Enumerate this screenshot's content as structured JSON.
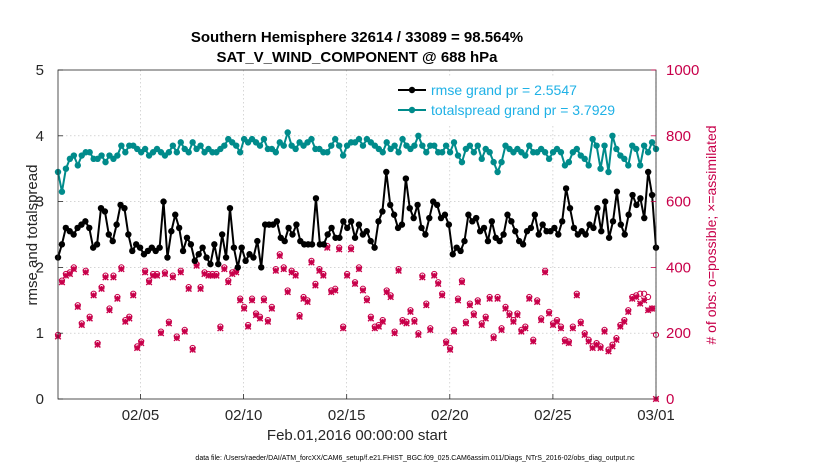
{
  "chart_data": {
    "type": "line",
    "title": "Southern Hemisphere 32614 / 33089 = 98.564%",
    "subtitle": "SAT_V_WIND_COMPONENT @ 688 hPa",
    "xlabel": "Feb.01,2016 00:00:00 start",
    "ylabel": "rmse and totalspread",
    "ylabel_right": "# of obs: o=possible; ×=assimilated",
    "footnote": "data file: /Users/raeder/DAI/ATM_forcXX/CAM6_setup/f.e21.FHIST_BGC.f09_025.CAM6assim.011/Diags_NTrS_2016-02/obs_diag_output.nc",
    "xlim": [
      1,
      30
    ],
    "ylim": [
      0,
      5
    ],
    "ylim_right": [
      0,
      1000
    ],
    "xticks": [
      {
        "x": 5,
        "label": "02/05"
      },
      {
        "x": 10,
        "label": "02/10"
      },
      {
        "x": 15,
        "label": "02/15"
      },
      {
        "x": 20,
        "label": "02/20"
      },
      {
        "x": 25,
        "label": "02/25"
      },
      {
        "x": 30,
        "label": "03/01"
      }
    ],
    "yticks": [
      0,
      1,
      2,
      3,
      4,
      5
    ],
    "yticks_right": [
      0,
      200,
      400,
      600,
      800,
      1000
    ],
    "grid": true,
    "legend_position": "top-right",
    "series": [
      {
        "name": "rmse grand pr = 2.5547",
        "color": "#000000",
        "axis": "left",
        "values": [
          2.15,
          2.35,
          2.6,
          2.55,
          2.5,
          2.6,
          2.65,
          2.7,
          2.6,
          2.3,
          2.35,
          2.9,
          2.85,
          2.5,
          2.4,
          2.65,
          2.95,
          2.9,
          2.5,
          2.25,
          2.35,
          2.3,
          2.2,
          2.25,
          2.3,
          2.25,
          2.3,
          3.0,
          2.15,
          2.55,
          2.8,
          2.6,
          2.25,
          2.45,
          2.35,
          2.1,
          2.2,
          2.3,
          2.15,
          2.05,
          2.35,
          2.05,
          2.5,
          2.15,
          2.9,
          2.3,
          2.0,
          2.3,
          2.1,
          2.2,
          2.15,
          2.4,
          2.0,
          2.65,
          2.65,
          2.65,
          2.7,
          2.45,
          2.4,
          2.6,
          2.5,
          2.65,
          2.4,
          2.35,
          2.35,
          2.35,
          3.05,
          2.35,
          2.35,
          2.5,
          2.6,
          2.45,
          2.45,
          2.7,
          2.6,
          2.7,
          2.45,
          2.65,
          2.5,
          2.55,
          2.4,
          2.3,
          2.7,
          2.85,
          3.45,
          2.95,
          2.8,
          2.6,
          2.65,
          3.35,
          2.9,
          2.75,
          2.95,
          2.6,
          2.5,
          2.75,
          3.0,
          2.95,
          2.75,
          2.8,
          2.65,
          2.2,
          2.3,
          2.25,
          2.4,
          2.8,
          2.7,
          2.75,
          2.55,
          2.6,
          2.4,
          2.7,
          2.45,
          2.4,
          2.5,
          2.8,
          2.7,
          2.55,
          2.4,
          2.35,
          2.55,
          2.6,
          2.8,
          2.5,
          2.65,
          2.55,
          2.55,
          2.6,
          2.5,
          2.7,
          3.2,
          2.9,
          2.6,
          2.5,
          2.55,
          2.5,
          2.65,
          2.6,
          2.9,
          2.55,
          3.0,
          2.45,
          2.7,
          3.15,
          2.65,
          2.5,
          2.8,
          3.1,
          2.95,
          3.05,
          2.75,
          3.45,
          3.1,
          2.3
        ]
      },
      {
        "name": "totalspread grand pr = 3.7929",
        "color": "#008b8b",
        "axis": "left",
        "values": [
          3.45,
          3.15,
          3.5,
          3.65,
          3.7,
          3.55,
          3.7,
          3.75,
          3.75,
          3.65,
          3.65,
          3.7,
          3.6,
          3.7,
          3.65,
          3.7,
          3.85,
          3.75,
          3.85,
          3.85,
          3.8,
          3.75,
          3.8,
          3.7,
          3.75,
          3.8,
          3.75,
          3.7,
          3.75,
          3.85,
          3.75,
          3.9,
          3.8,
          3.75,
          3.9,
          3.8,
          3.85,
          3.75,
          3.8,
          3.75,
          3.75,
          3.8,
          3.85,
          3.95,
          3.9,
          3.85,
          3.75,
          3.95,
          3.9,
          3.95,
          3.9,
          3.85,
          3.95,
          3.8,
          3.8,
          3.75,
          3.9,
          3.85,
          4.05,
          3.85,
          3.8,
          3.9,
          3.85,
          3.9,
          3.95,
          3.8,
          3.8,
          3.75,
          3.75,
          3.85,
          3.95,
          3.85,
          3.7,
          3.85,
          3.9,
          3.9,
          3.95,
          3.85,
          3.95,
          3.9,
          3.85,
          3.8,
          3.75,
          3.9,
          3.8,
          3.85,
          3.75,
          3.95,
          3.85,
          3.8,
          3.85,
          4.0,
          3.85,
          3.75,
          3.85,
          3.85,
          3.75,
          3.75,
          3.85,
          3.75,
          3.9,
          3.7,
          3.6,
          3.8,
          3.85,
          3.75,
          3.85,
          3.65,
          3.8,
          3.75,
          3.6,
          3.45,
          3.6,
          3.85,
          3.8,
          3.75,
          3.8,
          3.75,
          3.7,
          3.85,
          3.75,
          3.75,
          3.8,
          3.75,
          3.65,
          3.75,
          3.8,
          3.75,
          3.55,
          3.6,
          3.75,
          3.8,
          3.7,
          3.65,
          3.55,
          3.95,
          3.85,
          3.5,
          3.85,
          3.45,
          4.0,
          3.8,
          3.7,
          3.65,
          3.55,
          3.85,
          3.8,
          3.55,
          3.85,
          3.75,
          3.9,
          3.8
        ]
      },
      {
        "name": "# of obs possible",
        "color": "#c8004a",
        "axis": "right",
        "marker": "circle",
        "values": [
          195,
          360,
          380,
          385,
          400,
          285,
          230,
          390,
          250,
          320,
          170,
          340,
          375,
          275,
          375,
          310,
          400,
          240,
          250,
          320,
          160,
          175,
          390,
          360,
          380,
          380,
          205,
          385,
          235,
          375,
          190,
          390,
          210,
          340,
          155,
          410,
          340,
          385,
          380,
          380,
          380,
          220,
          400,
          360,
          385,
          390,
          305,
          280,
          225,
          305,
          260,
          250,
          305,
          240,
          280,
          395,
          440,
          400,
          330,
          390,
          380,
          255,
          310,
          300,
          420,
          350,
          395,
          380,
          465,
          330,
          335,
          460,
          220,
          380,
          460,
          355,
          400,
          335,
          305,
          250,
          220,
          225,
          240,
          330,
          315,
          205,
          395,
          240,
          235,
          270,
          240,
          200,
          375,
          290,
          215,
          380,
          355,
          320,
          175,
          155,
          210,
          305,
          360,
          235,
          290,
          260,
          300,
          230,
          250,
          310,
          190,
          310,
          215,
          280,
          260,
          240,
          260,
          210,
          220,
          310,
          180,
          300,
          245,
          390,
          265,
          230,
          240,
          220,
          180,
          175,
          220,
          320,
          235,
          200,
          180,
          160,
          170,
          160,
          210,
          150,
          165,
          185,
          225,
          240,
          270,
          310,
          315,
          320,
          320,
          310,
          275,
          195
        ]
      },
      {
        "name": "# of obs assimilated",
        "color": "#c8004a",
        "axis": "right",
        "marker": "x",
        "values": [
          190,
          355,
          375,
          380,
          395,
          280,
          225,
          385,
          245,
          315,
          165,
          335,
          370,
          270,
          370,
          305,
          395,
          235,
          245,
          315,
          155,
          170,
          385,
          355,
          375,
          375,
          200,
          380,
          230,
          370,
          185,
          385,
          205,
          335,
          150,
          405,
          335,
          380,
          375,
          375,
          375,
          215,
          395,
          355,
          380,
          385,
          300,
          275,
          220,
          300,
          255,
          245,
          300,
          235,
          275,
          390,
          435,
          395,
          325,
          385,
          375,
          250,
          305,
          295,
          415,
          345,
          390,
          375,
          460,
          325,
          330,
          455,
          215,
          375,
          455,
          350,
          395,
          330,
          300,
          245,
          215,
          220,
          235,
          325,
          310,
          200,
          390,
          235,
          230,
          265,
          235,
          195,
          370,
          285,
          210,
          375,
          350,
          315,
          170,
          150,
          205,
          300,
          355,
          230,
          285,
          255,
          295,
          225,
          245,
          305,
          185,
          305,
          210,
          275,
          255,
          235,
          255,
          205,
          215,
          305,
          175,
          295,
          240,
          385,
          260,
          225,
          235,
          215,
          175,
          170,
          215,
          315,
          230,
          195,
          175,
          155,
          165,
          155,
          205,
          145,
          160,
          180,
          220,
          235,
          265,
          305,
          310,
          290,
          300,
          270,
          275,
          0
        ]
      }
    ]
  }
}
